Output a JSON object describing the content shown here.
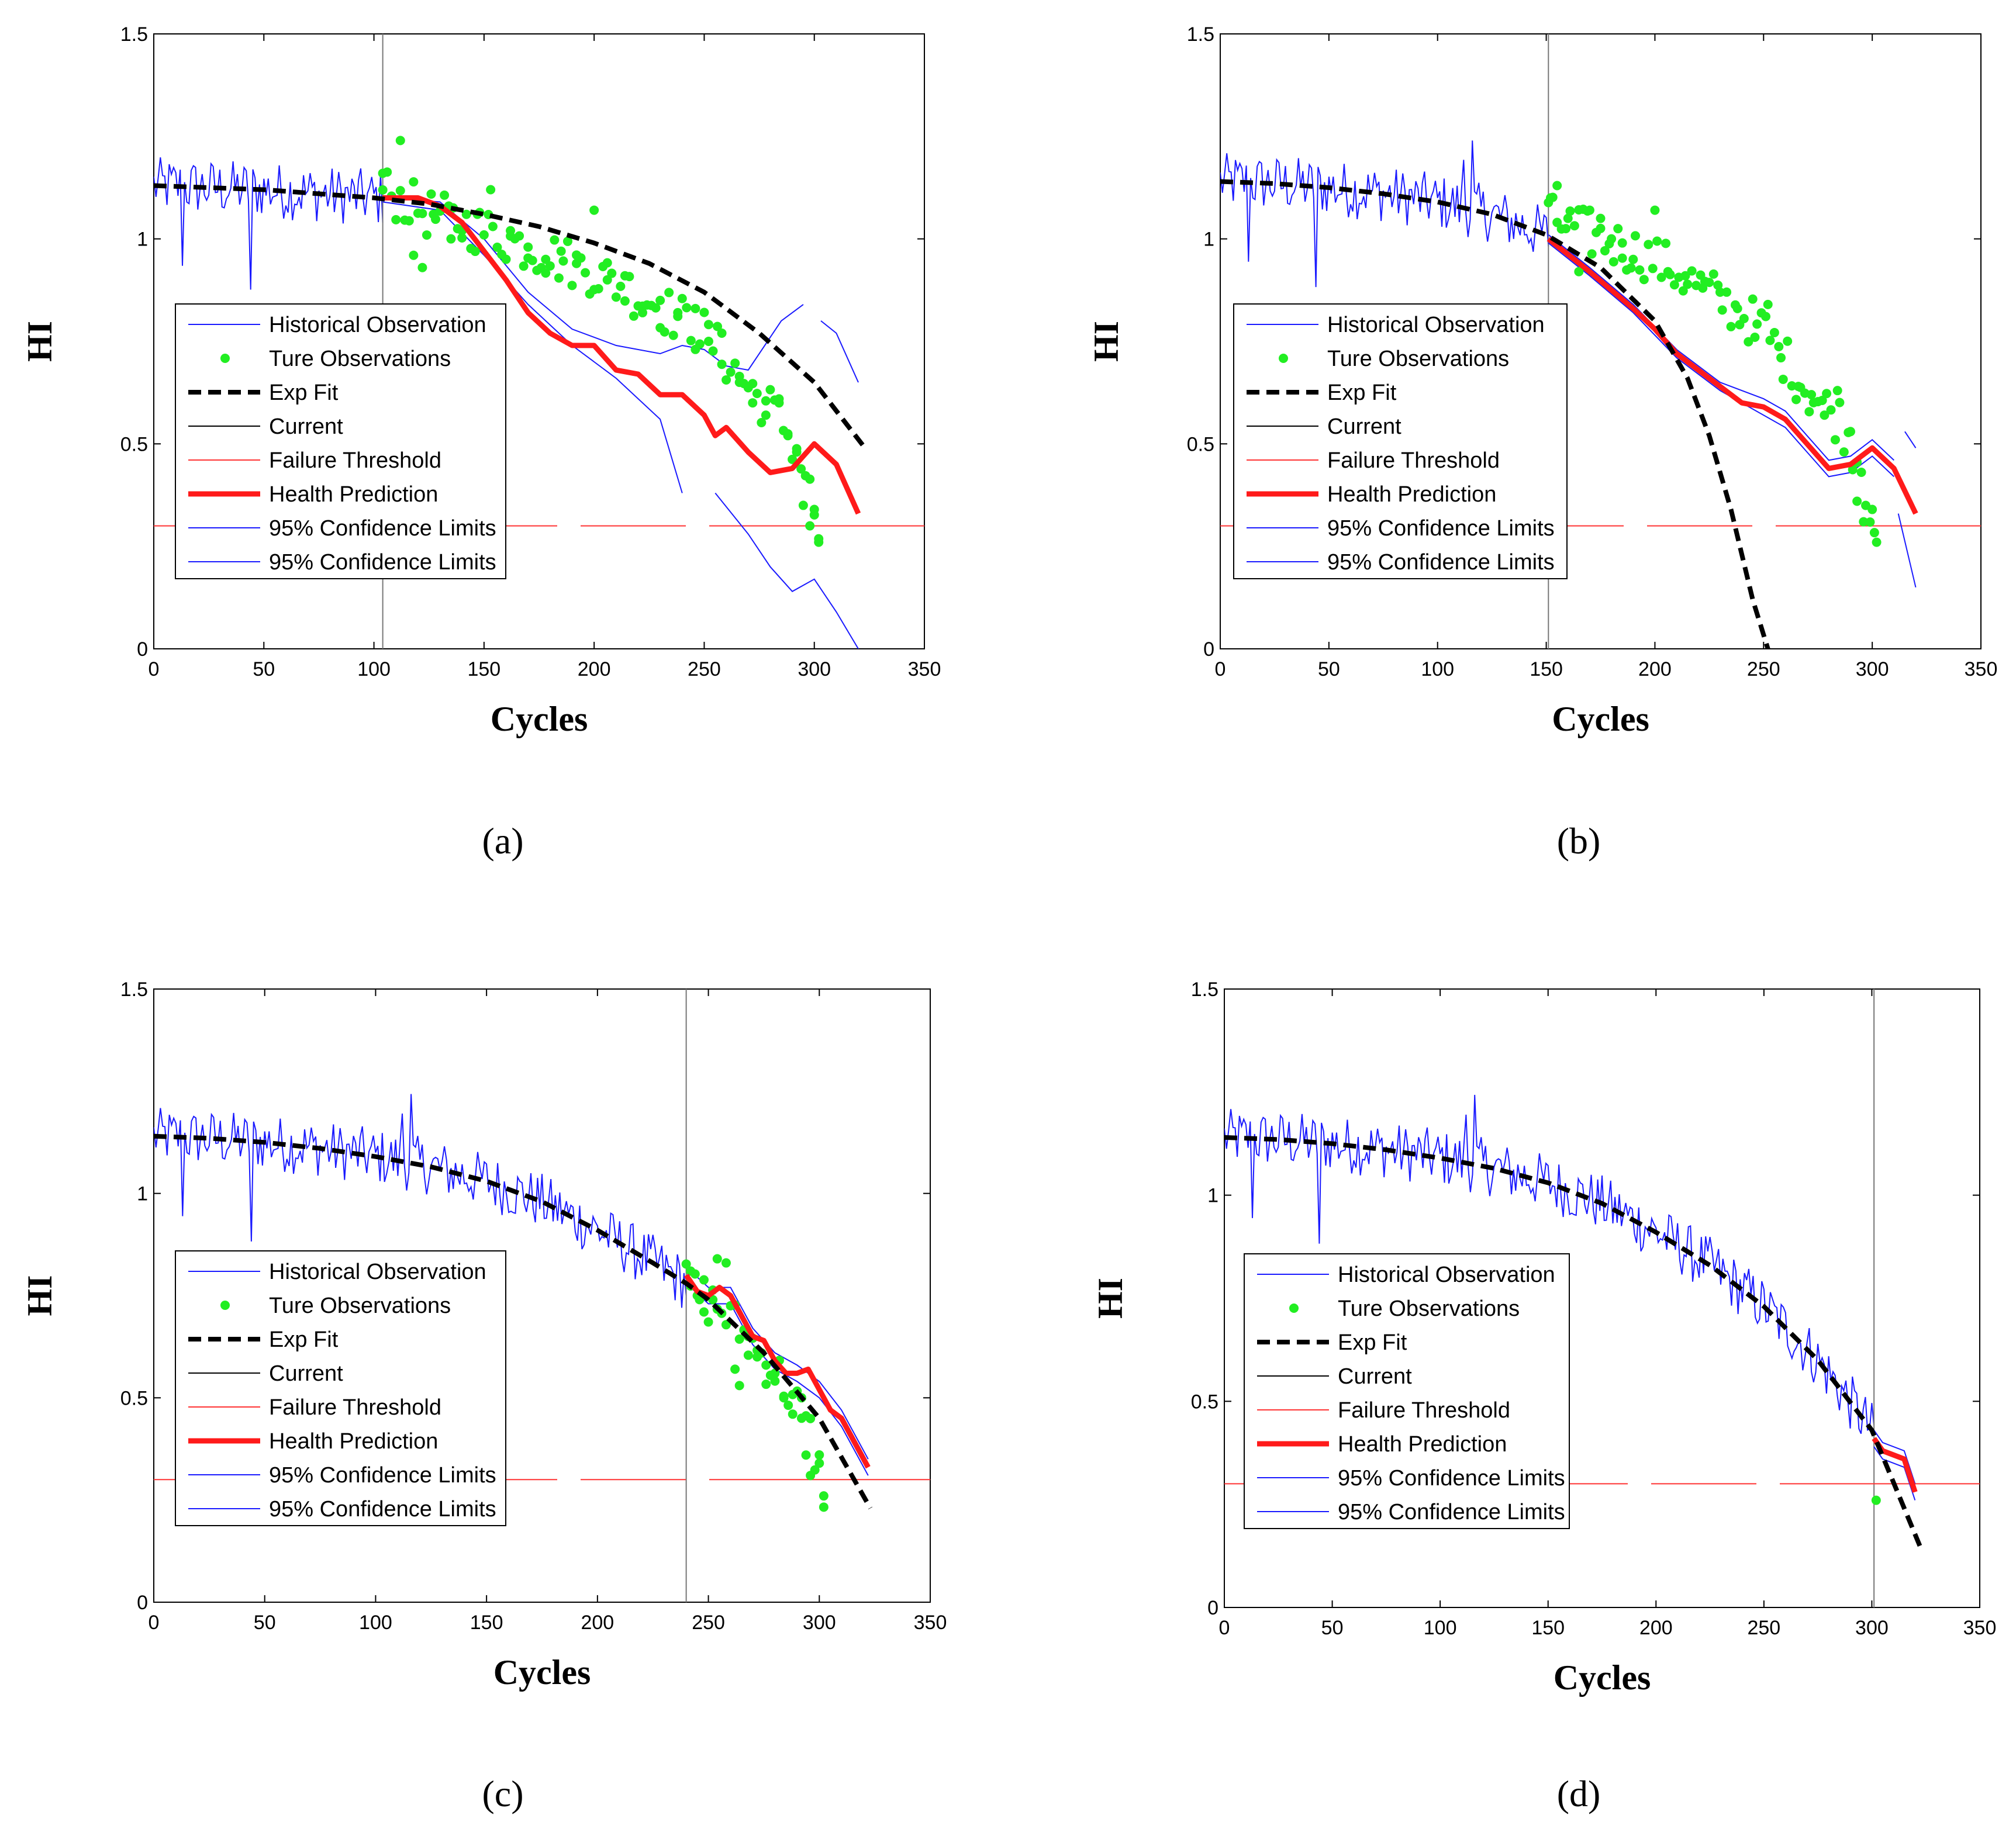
{
  "colors": {
    "historical": "#1a1aff",
    "observation": "#22ee22",
    "expfit": "#000000",
    "current": "#777777",
    "threshold": "#ff3333",
    "prediction": "#ff1a1a",
    "confidence": "#1a1aff"
  },
  "chart_data": [
    {
      "panel_label": "(a)",
      "type": "line",
      "xlabel": "Cycles",
      "ylabel": "HI",
      "xlim": [
        0,
        350
      ],
      "ylim": [
        0,
        1.5
      ],
      "xticks": [
        "0",
        "50",
        "100",
        "150",
        "200",
        "250",
        "300",
        "350"
      ],
      "yticks": [
        "0",
        "0.5",
        "1",
        "1.5"
      ],
      "current_cycle": 104,
      "failure_threshold": 0.3,
      "legend_labels": [
        "Historical Observation",
        "Ture Observations",
        "Exp Fit",
        "Current",
        "Failure Threshold",
        "Health Prediction",
        "95% Confidence Limits",
        "95% Confidence Limits"
      ],
      "exp_fit": {
        "x": [
          0,
          25,
          50,
          75,
          100,
          125,
          150,
          175,
          200,
          225,
          250,
          275,
          300,
          323
        ],
        "y": [
          1.13,
          1.125,
          1.12,
          1.11,
          1.1,
          1.085,
          1.06,
          1.03,
          0.99,
          0.94,
          0.87,
          0.77,
          0.65,
          0.49
        ]
      },
      "health_prediction": {
        "x": [
          104,
          120,
          130,
          140,
          150,
          160,
          170,
          180,
          190,
          200,
          210,
          220,
          230,
          240,
          250,
          255,
          260,
          270,
          280,
          290,
          300,
          310,
          320
        ],
        "y": [
          1.1,
          1.1,
          1.08,
          1.04,
          0.97,
          0.9,
          0.82,
          0.77,
          0.74,
          0.74,
          0.68,
          0.67,
          0.62,
          0.62,
          0.57,
          0.52,
          0.54,
          0.48,
          0.43,
          0.44,
          0.5,
          0.45,
          0.33
        ]
      },
      "confidence_upper": {
        "x": [
          104,
          130,
          150,
          170,
          190,
          210,
          230,
          240,
          250,
          260,
          270,
          285,
          295
        ],
        "y": [
          1.1,
          1.09,
          1.0,
          0.87,
          0.78,
          0.74,
          0.72,
          0.74,
          0.73,
          0.69,
          0.68,
          0.8,
          0.84
        ]
      },
      "confidence_upper_tail": {
        "x": [
          303,
          310,
          320
        ],
        "y": [
          0.8,
          0.77,
          0.65
        ]
      },
      "confidence_lower": {
        "x": [
          104,
          130,
          150,
          170,
          190,
          210,
          230,
          240
        ],
        "y": [
          1.09,
          1.07,
          0.96,
          0.84,
          0.74,
          0.66,
          0.56,
          0.38
        ]
      },
      "confidence_lower_tail": {
        "x": [
          255,
          270,
          280,
          290,
          300,
          310,
          320
        ],
        "y": [
          0.38,
          0.28,
          0.2,
          0.14,
          0.17,
          0.09,
          0.0
        ]
      },
      "observations_x_range": [
        104,
        322
      ],
      "observation_points": [
        [
          104,
          1.16
        ],
        [
          112,
          1.24
        ],
        [
          118,
          0.96
        ],
        [
          122,
          0.93
        ],
        [
          127,
          1.06
        ],
        [
          135,
          1.0
        ],
        [
          140,
          1.02
        ],
        [
          147,
          1.06
        ],
        [
          153,
          1.12
        ],
        [
          162,
          1.02
        ],
        [
          170,
          0.98
        ],
        [
          178,
          0.95
        ],
        [
          185,
          0.97
        ],
        [
          192,
          0.94
        ],
        [
          200,
          1.07
        ],
        [
          206,
          0.9
        ],
        [
          214,
          0.91
        ],
        [
          222,
          0.82
        ],
        [
          230,
          0.85
        ],
        [
          238,
          0.82
        ],
        [
          246,
          0.83
        ],
        [
          252,
          0.75
        ],
        [
          258,
          0.77
        ],
        [
          266,
          0.65
        ],
        [
          272,
          0.6
        ],
        [
          278,
          0.57
        ],
        [
          284,
          0.6
        ],
        [
          288,
          0.52
        ],
        [
          292,
          0.48
        ],
        [
          295,
          0.35
        ],
        [
          298,
          0.3
        ],
        [
          300,
          0.34
        ],
        [
          302,
          0.26
        ]
      ],
      "observations": {
        "x": [
          104,
          125,
          150,
          175,
          200,
          225,
          250,
          270,
          285,
          295,
          302
        ],
        "y": [
          1.12,
          1.06,
          1.02,
          0.97,
          0.92,
          0.85,
          0.77,
          0.64,
          0.56,
          0.45,
          0.28
        ]
      }
    },
    {
      "panel_label": "(b)",
      "type": "line",
      "xlabel": "Cycles",
      "ylabel": "HI",
      "xlim": [
        0,
        350
      ],
      "ylim": [
        0,
        1.5
      ],
      "xticks": [
        "0",
        "50",
        "100",
        "150",
        "200",
        "250",
        "300",
        "350"
      ],
      "yticks": [
        "0",
        "0.5",
        "1",
        "1.5"
      ],
      "current_cycle": 151,
      "failure_threshold": 0.3,
      "legend_labels": [
        "Historical Observation",
        "Ture Observations",
        "Exp Fit",
        "Current",
        "Failure Threshold",
        "Health Prediction",
        "95% Confidence Limits",
        "95% Confidence Limits"
      ],
      "exp_fit": {
        "x": [
          0,
          25,
          50,
          75,
          100,
          125,
          150,
          175,
          200,
          215,
          225,
          235,
          245,
          252
        ],
        "y": [
          1.14,
          1.135,
          1.125,
          1.11,
          1.09,
          1.06,
          1.01,
          0.93,
          0.8,
          0.66,
          0.52,
          0.34,
          0.12,
          0.0
        ]
      },
      "health_prediction": {
        "x": [
          151,
          170,
          190,
          200,
          210,
          220,
          230,
          240,
          250,
          260,
          270,
          280,
          290,
          300,
          310,
          320
        ],
        "y": [
          1.0,
          0.92,
          0.83,
          0.78,
          0.72,
          0.68,
          0.64,
          0.6,
          0.59,
          0.56,
          0.5,
          0.44,
          0.45,
          0.49,
          0.44,
          0.33
        ]
      },
      "confidence_upper": {
        "x": [
          151,
          170,
          190,
          210,
          230,
          250,
          260,
          270,
          280,
          290,
          300,
          310
        ],
        "y": [
          1.01,
          0.93,
          0.84,
          0.73,
          0.65,
          0.61,
          0.58,
          0.52,
          0.46,
          0.47,
          0.51,
          0.46
        ]
      },
      "confidence_upper_tail": {
        "x": [
          315,
          320
        ],
        "y": [
          0.53,
          0.49
        ]
      },
      "confidence_lower": {
        "x": [
          151,
          170,
          190,
          210,
          230,
          250,
          260,
          270,
          280,
          290,
          300,
          310
        ],
        "y": [
          0.99,
          0.91,
          0.82,
          0.71,
          0.63,
          0.57,
          0.54,
          0.48,
          0.42,
          0.43,
          0.47,
          0.42
        ]
      },
      "confidence_lower_tail": {
        "x": [
          312,
          320
        ],
        "y": [
          0.33,
          0.15
        ]
      },
      "observations_x_range": [
        151,
        322
      ],
      "observation_points": [
        [
          152,
          1.1
        ],
        [
          155,
          1.13
        ],
        [
          160,
          1.05
        ],
        [
          165,
          0.92
        ],
        [
          170,
          1.07
        ],
        [
          175,
          1.05
        ],
        [
          180,
          1.0
        ],
        [
          185,
          0.99
        ],
        [
          190,
          0.95
        ],
        [
          200,
          1.07
        ],
        [
          206,
          0.92
        ],
        [
          214,
          0.91
        ],
        [
          222,
          0.88
        ],
        [
          230,
          0.87
        ],
        [
          238,
          0.83
        ],
        [
          246,
          0.76
        ],
        [
          252,
          0.84
        ],
        [
          258,
          0.71
        ],
        [
          266,
          0.64
        ],
        [
          272,
          0.62
        ],
        [
          278,
          0.57
        ],
        [
          284,
          0.63
        ],
        [
          290,
          0.53
        ],
        [
          293,
          0.36
        ],
        [
          296,
          0.31
        ],
        [
          300,
          0.34
        ],
        [
          302,
          0.26
        ]
      ],
      "observations": {
        "x": [
          151,
          175,
          200,
          225,
          250,
          270,
          285,
          295,
          302
        ],
        "y": [
          1.05,
          1.0,
          0.95,
          0.87,
          0.78,
          0.63,
          0.56,
          0.45,
          0.28
        ]
      }
    },
    {
      "panel_label": "(c)",
      "type": "line",
      "xlabel": "Cycles",
      "ylabel": "HI",
      "xlim": [
        0,
        350
      ],
      "ylim": [
        0,
        1.5
      ],
      "xticks": [
        "0",
        "50",
        "100",
        "150",
        "200",
        "250",
        "300",
        "350"
      ],
      "yticks": [
        "0",
        "0.5",
        "1",
        "1.5"
      ],
      "current_cycle": 240,
      "failure_threshold": 0.3,
      "legend_labels": [
        "Historical Observation",
        "Ture Observations",
        "Exp Fit",
        "Current",
        "Failure Threshold",
        "Health Prediction",
        "95% Confidence Limits",
        "95% Confidence Limits"
      ],
      "exp_fit": {
        "x": [
          0,
          25,
          50,
          75,
          100,
          125,
          150,
          175,
          200,
          225,
          240,
          250,
          275,
          300,
          323
        ],
        "y": [
          1.14,
          1.135,
          1.125,
          1.11,
          1.09,
          1.065,
          1.03,
          0.98,
          0.91,
          0.83,
          0.78,
          0.74,
          0.61,
          0.45,
          0.23
        ]
      },
      "health_prediction": {
        "x": [
          240,
          245,
          250,
          255,
          260,
          265,
          270,
          275,
          280,
          285,
          290,
          295,
          300,
          305,
          310,
          315,
          322
        ],
        "y": [
          0.8,
          0.76,
          0.75,
          0.77,
          0.75,
          0.7,
          0.65,
          0.64,
          0.59,
          0.56,
          0.56,
          0.57,
          0.52,
          0.47,
          0.45,
          0.4,
          0.33
        ]
      },
      "confidence_upper": {
        "x": [
          240,
          250,
          260,
          270,
          280,
          290,
          300,
          310,
          322
        ],
        "y": [
          0.82,
          0.77,
          0.77,
          0.67,
          0.61,
          0.58,
          0.54,
          0.47,
          0.35
        ]
      },
      "confidence_lower": {
        "x": [
          240,
          250,
          260,
          270,
          280,
          290,
          300,
          310,
          322
        ],
        "y": [
          0.78,
          0.73,
          0.73,
          0.63,
          0.57,
          0.54,
          0.5,
          0.43,
          0.31
        ]
      },
      "observations_x_range": [
        240,
        322
      ],
      "observation_points": [
        [
          242,
          0.81
        ],
        [
          245,
          0.75
        ],
        [
          248,
          0.71
        ],
        [
          252,
          0.74
        ],
        [
          254,
          0.84
        ],
        [
          258,
          0.83
        ],
        [
          262,
          0.57
        ],
        [
          264,
          0.53
        ],
        [
          268,
          0.65
        ],
        [
          272,
          0.6
        ],
        [
          276,
          0.58
        ],
        [
          280,
          0.56
        ],
        [
          284,
          0.5
        ],
        [
          288,
          0.46
        ],
        [
          292,
          0.45
        ],
        [
          294,
          0.36
        ],
        [
          296,
          0.31
        ],
        [
          300,
          0.34
        ],
        [
          302,
          0.26
        ]
      ],
      "observations": {
        "x": [
          240,
          255,
          270,
          285,
          295,
          302
        ],
        "y": [
          0.77,
          0.72,
          0.63,
          0.53,
          0.43,
          0.28
        ]
      }
    },
    {
      "panel_label": "(d)",
      "type": "line",
      "xlabel": "Cycles",
      "ylabel": "HI",
      "xlim": [
        0,
        350
      ],
      "ylim": [
        0,
        1.5
      ],
      "xticks": [
        "0",
        "50",
        "100",
        "150",
        "200",
        "250",
        "300",
        "350"
      ],
      "yticks": [
        "0",
        "0.5",
        "1",
        "1.5"
      ],
      "current_cycle": 301,
      "failure_threshold": 0.3,
      "legend_labels": [
        "Historical Observation",
        "Ture Observations",
        "Exp Fit",
        "Current",
        "Failure Threshold",
        "Health Prediction",
        "95% Confidence Limits",
        "95% Confidence Limits"
      ],
      "exp_fit": {
        "x": [
          0,
          25,
          50,
          75,
          100,
          125,
          150,
          175,
          200,
          225,
          250,
          275,
          300,
          323
        ],
        "y": [
          1.14,
          1.135,
          1.125,
          1.11,
          1.09,
          1.065,
          1.03,
          0.98,
          0.91,
          0.83,
          0.73,
          0.6,
          0.43,
          0.14
        ]
      },
      "health_prediction": {
        "x": [
          301,
          305,
          310,
          315,
          320
        ],
        "y": [
          0.41,
          0.38,
          0.37,
          0.36,
          0.28
        ]
      },
      "confidence_upper": {
        "x": [
          301,
          305,
          310,
          315,
          320
        ],
        "y": [
          0.43,
          0.4,
          0.39,
          0.38,
          0.3
        ]
      },
      "confidence_lower": {
        "x": [
          301,
          305,
          310,
          315,
          320
        ],
        "y": [
          0.39,
          0.36,
          0.35,
          0.34,
          0.26
        ]
      },
      "observations_x_range": [
        301,
        322
      ],
      "observation_points": [
        [
          302,
          0.26
        ]
      ],
      "observations": {
        "x": [
          302
        ],
        "y": [
          0.26
        ]
      }
    }
  ]
}
